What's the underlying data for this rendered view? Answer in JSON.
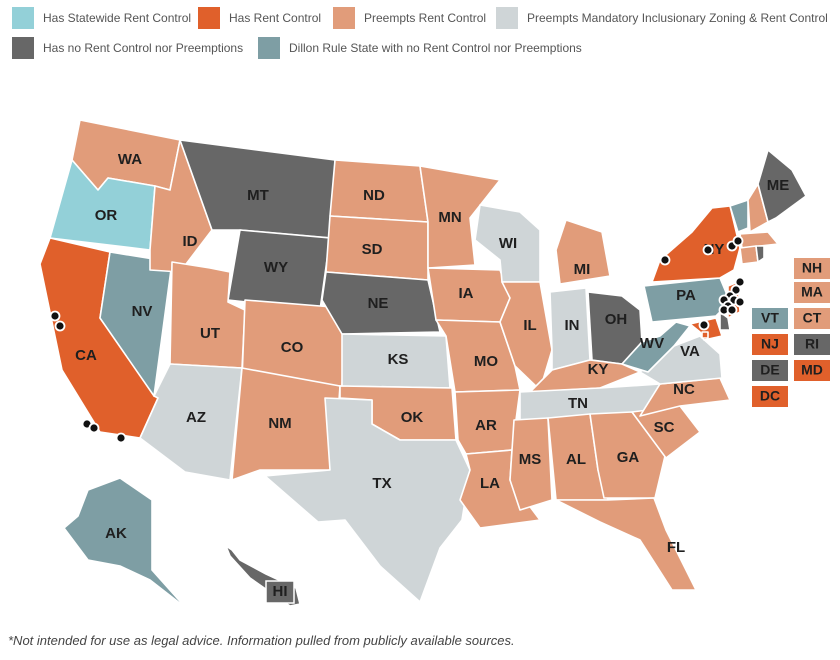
{
  "colors": {
    "statewide_rent_control": "#93d0d8",
    "rent_control": "#e0602b",
    "preempts_rent_control": "#e19c7a",
    "preempts_iz_and_rent_control": "#cfd5d7",
    "no_control_no_preemption": "#676767",
    "dillon_rule": "#7e9ea4"
  },
  "legend": [
    {
      "key": "statewide_rent_control",
      "label": "Has Statewide Rent Control"
    },
    {
      "key": "rent_control",
      "label": "Has Rent Control"
    },
    {
      "key": "preempts_rent_control",
      "label": "Preempts Rent Control"
    },
    {
      "key": "preempts_iz_and_rent_control",
      "label": "Preempts Mandatory Inclusionary Zoning & Rent Control"
    },
    {
      "key": "no_control_no_preemption",
      "label": "Has no Rent Control nor Preemptions"
    },
    {
      "key": "dillon_rule",
      "label": "Dillon Rule State with no Rent Control nor Preemptions"
    }
  ],
  "states": [
    {
      "abbr": "WA",
      "category": "preempts_rent_control"
    },
    {
      "abbr": "OR",
      "category": "statewide_rent_control"
    },
    {
      "abbr": "CA",
      "category": "rent_control"
    },
    {
      "abbr": "NV",
      "category": "dillon_rule"
    },
    {
      "abbr": "ID",
      "category": "preempts_rent_control"
    },
    {
      "abbr": "MT",
      "category": "no_control_no_preemption"
    },
    {
      "abbr": "WY",
      "category": "no_control_no_preemption"
    },
    {
      "abbr": "UT",
      "category": "preempts_rent_control"
    },
    {
      "abbr": "CO",
      "category": "preempts_rent_control"
    },
    {
      "abbr": "AZ",
      "category": "preempts_iz_and_rent_control"
    },
    {
      "abbr": "NM",
      "category": "preempts_rent_control"
    },
    {
      "abbr": "ND",
      "category": "preempts_rent_control"
    },
    {
      "abbr": "SD",
      "category": "preempts_rent_control"
    },
    {
      "abbr": "NE",
      "category": "no_control_no_preemption"
    },
    {
      "abbr": "KS",
      "category": "preempts_iz_and_rent_control"
    },
    {
      "abbr": "OK",
      "category": "preempts_rent_control"
    },
    {
      "abbr": "TX",
      "category": "preempts_iz_and_rent_control"
    },
    {
      "abbr": "MN",
      "category": "preempts_rent_control"
    },
    {
      "abbr": "IA",
      "category": "preempts_rent_control"
    },
    {
      "abbr": "MO",
      "category": "preempts_rent_control"
    },
    {
      "abbr": "AR",
      "category": "preempts_rent_control"
    },
    {
      "abbr": "LA",
      "category": "preempts_rent_control"
    },
    {
      "abbr": "WI",
      "category": "preempts_iz_and_rent_control"
    },
    {
      "abbr": "IL",
      "category": "preempts_rent_control"
    },
    {
      "abbr": "MI",
      "category": "preempts_rent_control"
    },
    {
      "abbr": "IN",
      "category": "preempts_iz_and_rent_control"
    },
    {
      "abbr": "OH",
      "category": "no_control_no_preemption"
    },
    {
      "abbr": "KY",
      "category": "preempts_rent_control"
    },
    {
      "abbr": "TN",
      "category": "preempts_iz_and_rent_control"
    },
    {
      "abbr": "MS",
      "category": "preempts_rent_control"
    },
    {
      "abbr": "AL",
      "category": "preempts_rent_control"
    },
    {
      "abbr": "GA",
      "category": "preempts_rent_control"
    },
    {
      "abbr": "FL",
      "category": "preempts_rent_control"
    },
    {
      "abbr": "SC",
      "category": "preempts_rent_control"
    },
    {
      "abbr": "NC",
      "category": "preempts_rent_control"
    },
    {
      "abbr": "VA",
      "category": "preempts_iz_and_rent_control"
    },
    {
      "abbr": "WV",
      "category": "dillon_rule"
    },
    {
      "abbr": "PA",
      "category": "dillon_rule"
    },
    {
      "abbr": "NY",
      "category": "rent_control"
    },
    {
      "abbr": "VT",
      "category": "dillon_rule"
    },
    {
      "abbr": "NH",
      "category": "preempts_rent_control"
    },
    {
      "abbr": "ME",
      "category": "no_control_no_preemption"
    },
    {
      "abbr": "MA",
      "category": "preempts_rent_control"
    },
    {
      "abbr": "CT",
      "category": "preempts_rent_control"
    },
    {
      "abbr": "RI",
      "category": "no_control_no_preemption"
    },
    {
      "abbr": "NJ",
      "category": "rent_control"
    },
    {
      "abbr": "DE",
      "category": "no_control_no_preemption"
    },
    {
      "abbr": "MD",
      "category": "rent_control"
    },
    {
      "abbr": "DC",
      "category": "rent_control"
    },
    {
      "abbr": "AK",
      "category": "dillon_rule"
    },
    {
      "abbr": "HI",
      "category": "no_control_no_preemption"
    }
  ],
  "small_state_boxes": [
    {
      "abbr": "NH",
      "category": "preempts_rent_control"
    },
    {
      "abbr": "MA",
      "category": "preempts_rent_control"
    },
    {
      "abbr": "VT",
      "category": "dillon_rule"
    },
    {
      "abbr": "CT",
      "category": "preempts_rent_control"
    },
    {
      "abbr": "NJ",
      "category": "rent_control"
    },
    {
      "abbr": "RI",
      "category": "no_control_no_preemption"
    },
    {
      "abbr": "DE",
      "category": "no_control_no_preemption"
    },
    {
      "abbr": "MD",
      "category": "rent_control"
    },
    {
      "abbr": "DC",
      "category": "rent_control"
    }
  ],
  "footnote": "*Not intended for use as legal advice. Information pulled from publicly available sources."
}
